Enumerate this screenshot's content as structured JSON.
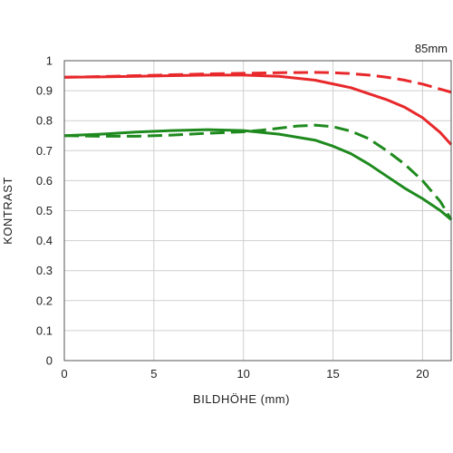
{
  "chart_data": {
    "type": "line",
    "title": "",
    "focal_length_label": "85mm",
    "xlabel": "BILDHÖHE (mm)",
    "ylabel": "KONTRAST",
    "xlim": [
      0,
      21.6
    ],
    "ylim": [
      0,
      1
    ],
    "x_ticks": [
      0,
      5,
      10,
      15,
      20
    ],
    "x_tick_labels": [
      "0",
      "5",
      "10",
      "15",
      "20"
    ],
    "y_ticks": [
      0,
      0.1,
      0.2,
      0.3,
      0.4,
      0.5,
      0.6,
      0.7,
      0.8,
      0.9,
      1
    ],
    "y_tick_labels": [
      "0",
      "0.1",
      "0.2",
      "0.3",
      "0.4",
      "0.5",
      "0.6",
      "0.7",
      "0.8",
      "0.9",
      "1"
    ],
    "grid": true,
    "legend": "none",
    "series": [
      {
        "color": "#e8282b",
        "line_style": "solid",
        "x": [
          0,
          2,
          4,
          6,
          8,
          10,
          12,
          14,
          16,
          18,
          19,
          20,
          21,
          21.6
        ],
        "y": [
          0.945,
          0.946,
          0.948,
          0.95,
          0.952,
          0.952,
          0.948,
          0.935,
          0.91,
          0.87,
          0.845,
          0.81,
          0.76,
          0.72
        ]
      },
      {
        "color": "#e8282b",
        "line_style": "dashed",
        "x": [
          0,
          2,
          4,
          6,
          8,
          10,
          12,
          14,
          15,
          16,
          17,
          18,
          19,
          20,
          21,
          21.6
        ],
        "y": [
          0.945,
          0.947,
          0.95,
          0.953,
          0.956,
          0.958,
          0.96,
          0.961,
          0.96,
          0.957,
          0.952,
          0.945,
          0.935,
          0.922,
          0.905,
          0.895
        ]
      },
      {
        "color": "#1e8a1e",
        "line_style": "solid",
        "x": [
          0,
          2,
          4,
          6,
          8,
          10,
          12,
          14,
          15,
          16,
          17,
          18,
          19,
          20,
          21,
          21.6
        ],
        "y": [
          0.75,
          0.755,
          0.762,
          0.767,
          0.77,
          0.767,
          0.755,
          0.735,
          0.715,
          0.69,
          0.655,
          0.615,
          0.575,
          0.54,
          0.5,
          0.47
        ]
      },
      {
        "color": "#1e8a1e",
        "line_style": "dashed",
        "x": [
          0,
          2,
          4,
          6,
          8,
          10,
          11,
          12,
          13,
          14,
          15,
          16,
          17,
          18,
          19,
          20,
          21,
          21.6
        ],
        "y": [
          0.75,
          0.748,
          0.748,
          0.752,
          0.758,
          0.763,
          0.768,
          0.775,
          0.782,
          0.785,
          0.78,
          0.765,
          0.74,
          0.7,
          0.655,
          0.6,
          0.53,
          0.47
        ]
      }
    ]
  }
}
